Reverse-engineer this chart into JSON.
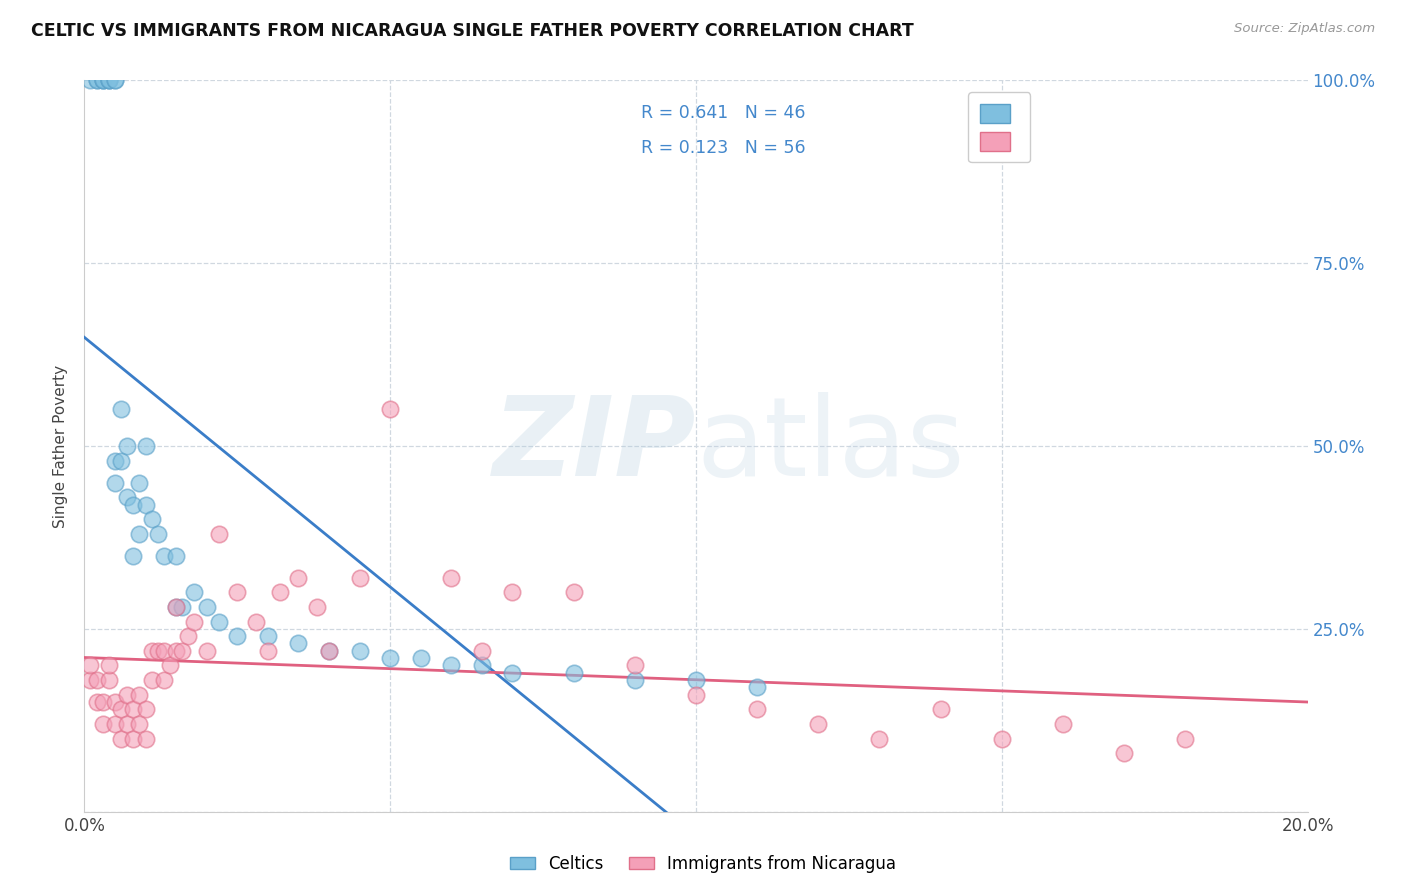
{
  "title": "CELTIC VS IMMIGRANTS FROM NICARAGUA SINGLE FATHER POVERTY CORRELATION CHART",
  "source": "Source: ZipAtlas.com",
  "ylabel": "Single Father Poverty",
  "xlim": [
    0.0,
    0.2
  ],
  "ylim": [
    0.0,
    1.0
  ],
  "legend_blue_r": "R = 0.641",
  "legend_blue_n": "N = 46",
  "legend_pink_r": "R = 0.123",
  "legend_pink_n": "N = 56",
  "celtics_color": "#7fbfdf",
  "celtics_edge_color": "#5aa0c8",
  "nicaragua_color": "#f4a0b8",
  "nicaragua_edge_color": "#e0708a",
  "celtics_line_color": "#3a7dc8",
  "nicaragua_line_color": "#e06080",
  "background_color": "#ffffff",
  "celtics_x": [
    0.001,
    0.002,
    0.002,
    0.003,
    0.003,
    0.003,
    0.004,
    0.004,
    0.004,
    0.005,
    0.005,
    0.005,
    0.005,
    0.006,
    0.006,
    0.007,
    0.007,
    0.008,
    0.008,
    0.009,
    0.009,
    0.01,
    0.01,
    0.011,
    0.012,
    0.013,
    0.015,
    0.015,
    0.016,
    0.018,
    0.02,
    0.022,
    0.025,
    0.03,
    0.035,
    0.04,
    0.045,
    0.05,
    0.055,
    0.06,
    0.065,
    0.07,
    0.08,
    0.09,
    0.1,
    0.11
  ],
  "celtics_y": [
    1.0,
    1.0,
    1.0,
    1.0,
    1.0,
    1.0,
    1.0,
    1.0,
    1.0,
    1.0,
    1.0,
    0.45,
    0.48,
    0.48,
    0.55,
    0.43,
    0.5,
    0.35,
    0.42,
    0.38,
    0.45,
    0.42,
    0.5,
    0.4,
    0.38,
    0.35,
    0.35,
    0.28,
    0.28,
    0.3,
    0.28,
    0.26,
    0.24,
    0.24,
    0.23,
    0.22,
    0.22,
    0.21,
    0.21,
    0.2,
    0.2,
    0.19,
    0.19,
    0.18,
    0.18,
    0.17
  ],
  "nicaragua_x": [
    0.001,
    0.001,
    0.002,
    0.002,
    0.003,
    0.003,
    0.004,
    0.004,
    0.005,
    0.005,
    0.006,
    0.006,
    0.007,
    0.007,
    0.008,
    0.008,
    0.009,
    0.009,
    0.01,
    0.01,
    0.011,
    0.011,
    0.012,
    0.013,
    0.013,
    0.014,
    0.015,
    0.015,
    0.016,
    0.017,
    0.018,
    0.02,
    0.022,
    0.025,
    0.028,
    0.03,
    0.032,
    0.035,
    0.038,
    0.04,
    0.045,
    0.05,
    0.06,
    0.065,
    0.07,
    0.08,
    0.09,
    0.1,
    0.11,
    0.12,
    0.13,
    0.14,
    0.15,
    0.16,
    0.17,
    0.18
  ],
  "nicaragua_y": [
    0.18,
    0.2,
    0.15,
    0.18,
    0.12,
    0.15,
    0.18,
    0.2,
    0.12,
    0.15,
    0.1,
    0.14,
    0.12,
    0.16,
    0.1,
    0.14,
    0.12,
    0.16,
    0.1,
    0.14,
    0.18,
    0.22,
    0.22,
    0.18,
    0.22,
    0.2,
    0.22,
    0.28,
    0.22,
    0.24,
    0.26,
    0.22,
    0.38,
    0.3,
    0.26,
    0.22,
    0.3,
    0.32,
    0.28,
    0.22,
    0.32,
    0.55,
    0.32,
    0.22,
    0.3,
    0.3,
    0.2,
    0.16,
    0.14,
    0.12,
    0.1,
    0.14,
    0.1,
    0.12,
    0.08,
    0.1
  ]
}
